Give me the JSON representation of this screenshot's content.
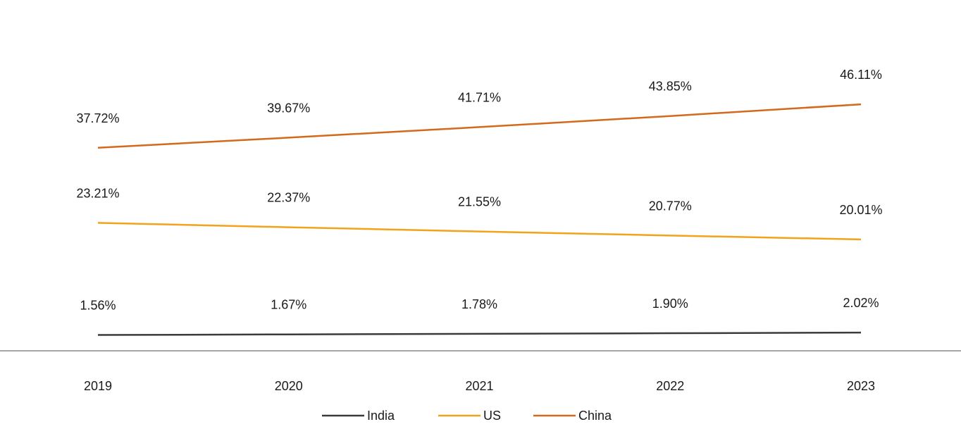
{
  "chart_data": {
    "type": "line",
    "x": [
      "2019",
      "2020",
      "2021",
      "2022",
      "2023"
    ],
    "series": [
      {
        "name": "India",
        "values": [
          1.56,
          1.67,
          1.78,
          1.9,
          2.02
        ],
        "labels": [
          "1.56%",
          "1.67%",
          "1.78%",
          "1.90%",
          "2.02%"
        ],
        "color": "#3b3b3b"
      },
      {
        "name": "US",
        "values": [
          23.21,
          22.37,
          21.55,
          20.77,
          20.01
        ],
        "labels": [
          "23.21%",
          "22.37%",
          "21.55%",
          "20.77%",
          "20.01%"
        ],
        "color": "#f2a21b"
      },
      {
        "name": "China",
        "values": [
          37.72,
          39.67,
          41.71,
          43.85,
          46.11
        ],
        "labels": [
          "37.72%",
          "39.67%",
          "41.71%",
          "43.85%",
          "46.11%"
        ],
        "color": "#d4691b"
      }
    ],
    "title": "",
    "xlabel": "",
    "ylabel": "",
    "ylim": [
      0,
      50
    ],
    "grid": false,
    "legend": "bottom-center",
    "axis_color": "#a6a6a6"
  }
}
